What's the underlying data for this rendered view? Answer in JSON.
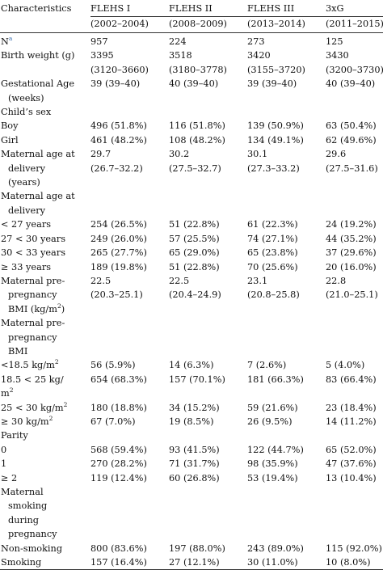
{
  "table": {
    "header": {
      "characteristics": "Characteristics",
      "cohorts": [
        "FLEHS I",
        "FLEHS II",
        "FLEHS III",
        "3xG"
      ],
      "periods": [
        "(2002–2004)",
        "(2008–2009)",
        "(2013–2014)",
        "(2011–2015)"
      ]
    },
    "n_row": {
      "label": "N",
      "sup": "a",
      "values": [
        "957",
        "224",
        "273",
        "125"
      ]
    },
    "birth_weight": {
      "label": "Birth weight (g)",
      "median": [
        "3395",
        "3518",
        "3420",
        "3430"
      ],
      "iqr": [
        "(3120–3660)",
        "(3180–3778)",
        "(3155–3720)",
        "(3200–3730)"
      ]
    },
    "gest_age": {
      "label1": "Gestational Age",
      "label2": "(weeks)",
      "values": [
        "39 (39–40)",
        "40 (39–40)",
        "39 (39–40)",
        "40 (39–40)"
      ]
    },
    "childs_sex": {
      "label": "Child’s sex",
      "rows": [
        {
          "label": "Boy",
          "values": [
            "496 (51.8%)",
            "116 (51.8%)",
            "139 (50.9%)",
            "63 (50.4%)"
          ]
        },
        {
          "label": "Girl",
          "values": [
            "461 (48.2%)",
            "108 (48.2%)",
            "134 (49.1%)",
            "62 (49.6%)"
          ]
        }
      ]
    },
    "mat_age_delivery": {
      "label1": "Maternal age at",
      "label2": "delivery",
      "label3": "(years)",
      "mean": [
        "29.7",
        "30.2",
        "30.1",
        "29.6"
      ],
      "range": [
        "(26.7–32.2)",
        "(27.5–32.7)",
        "(27.3–33.2)",
        "(27.5–31.6)"
      ]
    },
    "mat_age_cat": {
      "label1": "Maternal age at",
      "label2": "delivery",
      "rows": [
        {
          "label": "< 27 years",
          "values": [
            "254 (26.5%)",
            "51 (22.8%)",
            "61 (22.3%)",
            "24 (19.2%)"
          ]
        },
        {
          "label": "27 < 30 years",
          "values": [
            "249 (26.0%)",
            "57 (25.5%)",
            "74 (27.1%)",
            "44 (35.2%)"
          ]
        },
        {
          "label": "30 < 33 years",
          "values": [
            "265 (27.7%)",
            "65 (29.0%)",
            "65 (23.8%)",
            "37 (29.6%)"
          ]
        },
        {
          "label": "≥ 33 years",
          "values": [
            "189 (19.8%)",
            "51 (22.8%)",
            "70 (25.6%)",
            "20 (16.0%)"
          ]
        }
      ]
    },
    "bmi_cont": {
      "label1": "Maternal pre-",
      "label2": "pregnancy",
      "label3": "BMI (kg/m",
      "label3_sup": "2",
      "label3_end": ")",
      "mean": [
        "22.5",
        "22.5",
        "23.1",
        "22.8"
      ],
      "range": [
        "(20.3–25.1)",
        "(20.4–24.9)",
        "(20.8–25.8)",
        "(21.0–25.1)"
      ]
    },
    "bmi_cat": {
      "label1": "Maternal pre-",
      "label2": "pregnancy",
      "label3": "BMI",
      "row1": {
        "label": "<18.5 kg/m",
        "sup": "2",
        "values": [
          "56 (5.9%)",
          "14 (6.3%)",
          "7 (2.6%)",
          "5 (4.0%)"
        ]
      },
      "row2": {
        "label": "18.5 < 25 kg/",
        "label_cont": "m",
        "sup": "2",
        "values": [
          "654 (68.3%)",
          "157 (70.1%)",
          "181 (66.3%)",
          "83 (66.4%)"
        ]
      },
      "row3": {
        "label": "25 < 30 kg/m",
        "sup": "2",
        "values": [
          "180 (18.8%)",
          "34 (15.2%)",
          "59 (21.6%)",
          "23 (18.4%)"
        ]
      },
      "row4": {
        "label": "≥ 30 kg/m",
        "sup": "2",
        "values": [
          "67 (7.0%)",
          "19 (8.5%)",
          "26 (9.5%)",
          "14 (11.2%)"
        ]
      }
    },
    "parity": {
      "label": "Parity",
      "rows": [
        {
          "label": "0",
          "values": [
            "568 (59.4%)",
            "93 (41.5%)",
            "122 (44.7%)",
            "65 (52.0%)"
          ]
        },
        {
          "label": "1",
          "values": [
            "270 (28.2%)",
            "71 (31.7%)",
            "98 (35.9%)",
            "47 (37.6%)"
          ]
        },
        {
          "label": "≥ 2",
          "values": [
            "119 (12.4%)",
            "60 (26.8%)",
            "53 (19.4%)",
            "13 (10.4%)"
          ]
        }
      ]
    },
    "smoking": {
      "label_lines": [
        "Maternal",
        "smoking",
        "during",
        "pregnancy"
      ],
      "rows": [
        {
          "label": "Non-smoking",
          "values": [
            "800 (83.6%)",
            "197 (88.0%)",
            "243 (89.0%)",
            "115 (92.0%)"
          ]
        },
        {
          "label": "Smoking",
          "values": [
            "157 (16.4%)",
            "27 (12.1%)",
            "30 (11.0%)",
            "10 (8.0%)"
          ]
        }
      ]
    }
  }
}
